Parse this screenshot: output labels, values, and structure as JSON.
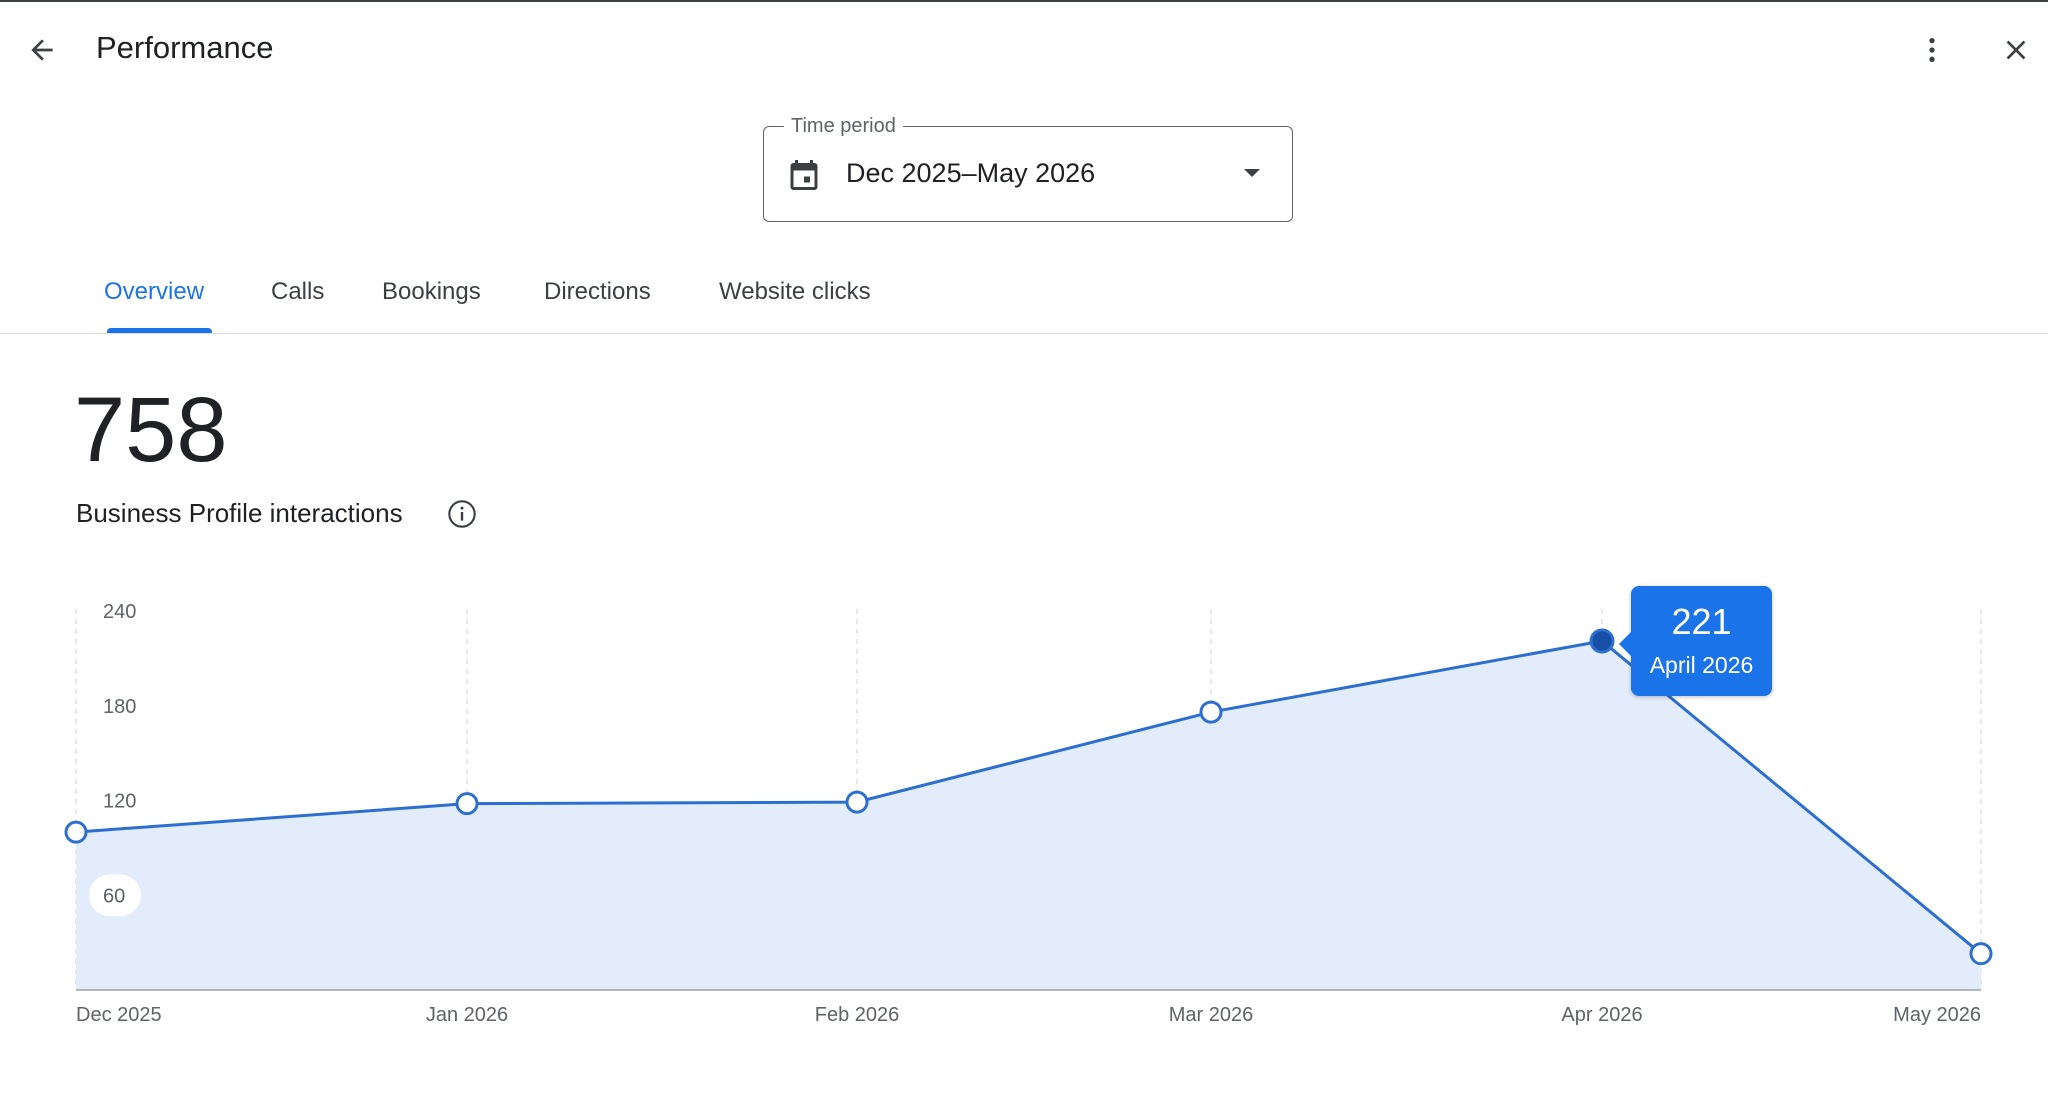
{
  "header": {
    "title": "Performance",
    "back_icon": "arrow-back-icon",
    "more_icon": "more-vert-icon",
    "close_icon": "close-icon"
  },
  "time_period": {
    "label": "Time period",
    "value": "Dec 2025–May 2026",
    "icon": "calendar-icon"
  },
  "tabs": [
    {
      "label": "Overview",
      "active": true
    },
    {
      "label": "Calls",
      "active": false
    },
    {
      "label": "Bookings",
      "active": false
    },
    {
      "label": "Directions",
      "active": false
    },
    {
      "label": "Website clicks",
      "active": false
    }
  ],
  "metric": {
    "value": "758",
    "label": "Business Profile interactions",
    "info_icon": "info-icon"
  },
  "colors": {
    "accent": "#1a73e8",
    "line": "#2d6fd0",
    "area": "#e2ecfb",
    "highlight": "#174ea6"
  },
  "chart_data": {
    "type": "area",
    "x": [
      "Dec 2025",
      "Jan 2026",
      "Feb 2026",
      "Mar 2026",
      "Apr 2026",
      "May 2026"
    ],
    "values": [
      100,
      118,
      119,
      176,
      221,
      23
    ],
    "ylim": [
      0,
      240
    ],
    "yticks": [
      60,
      120,
      180,
      240
    ],
    "grid": "vertical-dashed",
    "highlighted_index": 4,
    "tooltip": {
      "value": "221",
      "label": "April 2026"
    }
  }
}
